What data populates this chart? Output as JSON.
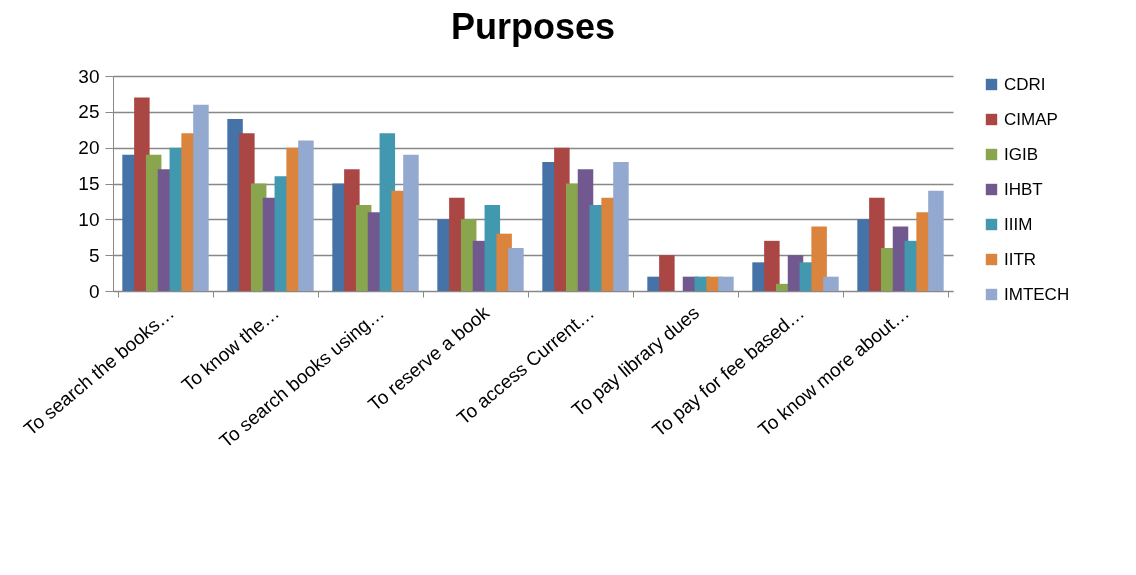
{
  "chart_data": {
    "type": "bar",
    "title": "Purposes",
    "categories": [
      "To search the books…",
      "To know the…",
      "To search books using…",
      "To reserve a book",
      "To access Current…",
      "To pay library dues",
      "To pay for fee based…",
      "To know more about…"
    ],
    "series": [
      {
        "name": "CDRI",
        "color": "#4572a7",
        "values": [
          19,
          24,
          15,
          10,
          18,
          2,
          4,
          10
        ]
      },
      {
        "name": "CIMAP",
        "color": "#aa4643",
        "values": [
          27,
          22,
          17,
          13,
          20,
          5,
          7,
          13
        ]
      },
      {
        "name": "IGIB",
        "color": "#89a54e",
        "values": [
          19,
          15,
          12,
          10,
          15,
          0,
          1,
          6
        ]
      },
      {
        "name": "IHBT",
        "color": "#71588f",
        "values": [
          17,
          13,
          11,
          7,
          17,
          2,
          5,
          9
        ]
      },
      {
        "name": "IIIM",
        "color": "#4198af",
        "values": [
          20,
          16,
          22,
          12,
          12,
          2,
          4,
          7
        ]
      },
      {
        "name": "IITR",
        "color": "#db843d",
        "values": [
          22,
          20,
          14,
          8,
          13,
          2,
          9,
          11
        ]
      },
      {
        "name": "IMTECH",
        "color": "#93a9cf",
        "values": [
          26,
          21,
          19,
          6,
          18,
          2,
          2,
          14
        ]
      }
    ],
    "ylim": [
      0,
      30
    ],
    "yticks": [
      0,
      5,
      10,
      15,
      20,
      25,
      30
    ],
    "grid": "y",
    "legend": "right"
  }
}
